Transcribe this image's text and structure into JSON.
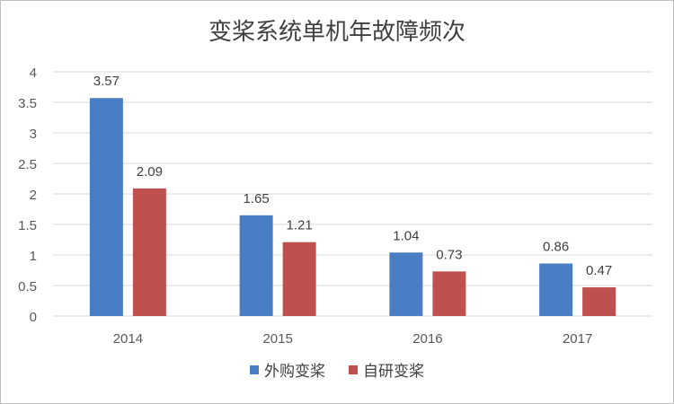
{
  "chart_data": {
    "type": "bar",
    "title": "变桨系统单机年故障频次",
    "categories": [
      "2014",
      "2015",
      "2016",
      "2017"
    ],
    "series": [
      {
        "name": "外购变桨",
        "color": "#4a7ec4",
        "values": [
          3.57,
          1.65,
          1.04,
          0.86
        ],
        "labels": [
          "3.57",
          "1.65",
          "1.04",
          "0.86"
        ]
      },
      {
        "name": "自研变桨",
        "color": "#c0504d",
        "values": [
          2.09,
          1.21,
          0.73,
          0.47
        ],
        "labels": [
          "2.09",
          "1.21",
          "0.73",
          "0.47"
        ]
      }
    ],
    "ylim": [
      0,
      4
    ],
    "yticks": [
      "0",
      "0.5",
      "1",
      "1.5",
      "2",
      "2.5",
      "3",
      "3.5",
      "4"
    ],
    "grid": true,
    "legend_position": "bottom"
  }
}
